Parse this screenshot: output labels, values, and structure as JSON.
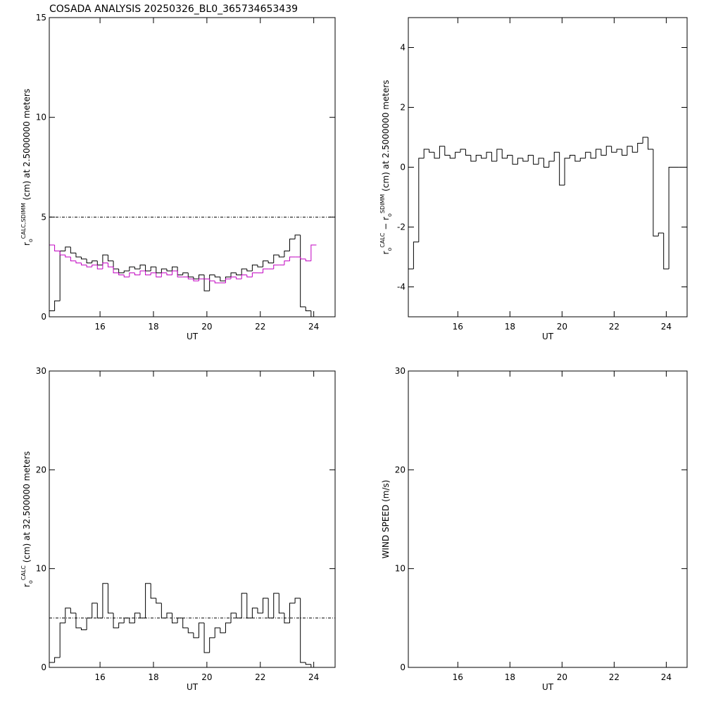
{
  "chart_data": [
    {
      "type": "line",
      "title": "COSADA ANALYSIS 20250326_BL0_365734653439",
      "xlabel": "UT",
      "ylabel": [
        {
          "text": "r"
        },
        {
          "text": "o",
          "pos": "sub"
        },
        {
          "text": "CALC,SDIMM",
          "pos": "sup"
        },
        {
          "text": " (cm)  at  2.5000000 meters"
        }
      ],
      "xlim": [
        14.1,
        24.8
      ],
      "xticks": [
        16,
        18,
        20,
        22,
        24
      ],
      "ylim": [
        0,
        15
      ],
      "yticks": [
        0,
        5,
        10,
        15
      ],
      "ref_line": 5,
      "x": [
        14.2,
        14.4,
        14.6,
        14.8,
        15.0,
        15.2,
        15.4,
        15.6,
        15.8,
        16.0,
        16.2,
        16.4,
        16.6,
        16.8,
        17.0,
        17.2,
        17.4,
        17.6,
        17.8,
        18.0,
        18.2,
        18.4,
        18.6,
        18.8,
        19.0,
        19.2,
        19.4,
        19.6,
        19.8,
        20.0,
        20.2,
        20.4,
        20.6,
        20.8,
        21.0,
        21.2,
        21.4,
        21.6,
        21.8,
        22.0,
        22.2,
        22.4,
        22.6,
        22.8,
        23.0,
        23.2,
        23.4,
        23.6,
        23.8,
        24.0
      ],
      "series": [
        {
          "color": "#000000",
          "values": [
            0.3,
            0.8,
            3.3,
            3.5,
            3.2,
            3.0,
            2.9,
            2.7,
            2.8,
            2.6,
            3.1,
            2.8,
            2.4,
            2.2,
            2.3,
            2.5,
            2.4,
            2.6,
            2.3,
            2.5,
            2.2,
            2.4,
            2.3,
            2.5,
            2.1,
            2.2,
            2.0,
            1.9,
            2.1,
            1.3,
            2.1,
            2.0,
            1.8,
            2.0,
            2.2,
            2.1,
            2.4,
            2.3,
            2.6,
            2.5,
            2.8,
            2.7,
            3.1,
            3.0,
            3.3,
            3.9,
            4.1,
            0.5,
            0.3,
            0.0
          ]
        },
        {
          "color": "#c000c0",
          "values": [
            3.6,
            3.3,
            3.1,
            3.0,
            2.8,
            2.7,
            2.6,
            2.5,
            2.6,
            2.4,
            2.7,
            2.5,
            2.2,
            2.1,
            2.0,
            2.2,
            2.1,
            2.3,
            2.1,
            2.2,
            2.0,
            2.2,
            2.1,
            2.3,
            2.0,
            2.0,
            1.9,
            1.8,
            1.9,
            1.9,
            1.8,
            1.7,
            1.7,
            1.9,
            2.0,
            1.9,
            2.1,
            2.0,
            2.2,
            2.2,
            2.4,
            2.4,
            2.6,
            2.6,
            2.8,
            3.0,
            3.0,
            2.9,
            2.8,
            3.6
          ]
        }
      ]
    },
    {
      "type": "line",
      "xlabel": "UT",
      "ylabel": [
        {
          "text": "r"
        },
        {
          "text": "o",
          "pos": "sub"
        },
        {
          "text": "CALC",
          "pos": "sup"
        },
        {
          "text": "  −  r"
        },
        {
          "text": "o",
          "pos": "sub"
        },
        {
          "text": "SDIMM",
          "pos": "sup"
        },
        {
          "text": " (cm)  at  2.5000000 meters"
        }
      ],
      "xlim": [
        14.1,
        24.8
      ],
      "xticks": [
        16,
        18,
        20,
        22,
        24
      ],
      "ylim": [
        -5,
        5
      ],
      "yticks": [
        -4,
        -2,
        0,
        2,
        4
      ],
      "x": [
        14.2,
        14.4,
        14.6,
        14.8,
        15.0,
        15.2,
        15.4,
        15.6,
        15.8,
        16.0,
        16.2,
        16.4,
        16.6,
        16.8,
        17.0,
        17.2,
        17.4,
        17.6,
        17.8,
        18.0,
        18.2,
        18.4,
        18.6,
        18.8,
        19.0,
        19.2,
        19.4,
        19.6,
        19.8,
        20.0,
        20.2,
        20.4,
        20.6,
        20.8,
        21.0,
        21.2,
        21.4,
        21.6,
        21.8,
        22.0,
        22.2,
        22.4,
        22.6,
        22.8,
        23.0,
        23.2,
        23.4,
        23.6,
        23.8,
        24.0,
        24.2,
        24.4,
        24.6,
        24.8
      ],
      "series": [
        {
          "color": "#000000",
          "values": [
            -3.4,
            -2.5,
            0.3,
            0.6,
            0.5,
            0.3,
            0.7,
            0.4,
            0.3,
            0.5,
            0.6,
            0.4,
            0.2,
            0.4,
            0.3,
            0.5,
            0.2,
            0.6,
            0.3,
            0.4,
            0.1,
            0.3,
            0.2,
            0.4,
            0.1,
            0.3,
            0.0,
            0.2,
            0.5,
            -0.6,
            0.3,
            0.4,
            0.2,
            0.3,
            0.5,
            0.3,
            0.6,
            0.4,
            0.7,
            0.5,
            0.6,
            0.4,
            0.7,
            0.5,
            0.8,
            1.0,
            0.6,
            -2.3,
            -2.2,
            -3.4,
            0,
            0,
            0,
            0
          ]
        }
      ]
    },
    {
      "type": "line",
      "xlabel": "UT",
      "ylabel": [
        {
          "text": "r"
        },
        {
          "text": "o",
          "pos": "sub"
        },
        {
          "text": "CALC",
          "pos": "sup"
        },
        {
          "text": " (cm)  at  32.500000 meters"
        }
      ],
      "xlim": [
        14.1,
        24.8
      ],
      "xticks": [
        16,
        18,
        20,
        22,
        24
      ],
      "ylim": [
        0,
        30
      ],
      "yticks": [
        0,
        10,
        20,
        30
      ],
      "ref_line": 5,
      "x": [
        14.2,
        14.4,
        14.6,
        14.8,
        15.0,
        15.2,
        15.4,
        15.6,
        15.8,
        16.0,
        16.2,
        16.4,
        16.6,
        16.8,
        17.0,
        17.2,
        17.4,
        17.6,
        17.8,
        18.0,
        18.2,
        18.4,
        18.6,
        18.8,
        19.0,
        19.2,
        19.4,
        19.6,
        19.8,
        20.0,
        20.2,
        20.4,
        20.6,
        20.8,
        21.0,
        21.2,
        21.4,
        21.6,
        21.8,
        22.0,
        22.2,
        22.4,
        22.6,
        22.8,
        23.0,
        23.2,
        23.4,
        23.6,
        23.8,
        24.0
      ],
      "series": [
        {
          "color": "#000000",
          "values": [
            0.5,
            1.0,
            4.5,
            6.0,
            5.5,
            4.0,
            3.8,
            5.0,
            6.5,
            5.0,
            8.5,
            5.5,
            4.0,
            4.5,
            5.0,
            4.5,
            5.5,
            5.0,
            8.5,
            7.0,
            6.5,
            5.0,
            5.5,
            4.5,
            5.0,
            4.0,
            3.5,
            3.0,
            4.5,
            1.5,
            3.0,
            4.0,
            3.5,
            4.5,
            5.5,
            5.0,
            7.5,
            5.0,
            6.0,
            5.5,
            7.0,
            5.0,
            7.5,
            5.5,
            4.5,
            6.5,
            7.0,
            0.5,
            0.3,
            0.0
          ]
        }
      ]
    },
    {
      "type": "line",
      "xlabel": "UT",
      "ylabel": [
        {
          "text": "WIND SPEED (m/s)"
        }
      ],
      "xlim": [
        14.1,
        24.8
      ],
      "xticks": [
        16,
        18,
        20,
        22,
        24
      ],
      "ylim": [
        0,
        30
      ],
      "yticks": [
        0,
        10,
        20,
        30
      ],
      "series": []
    }
  ]
}
